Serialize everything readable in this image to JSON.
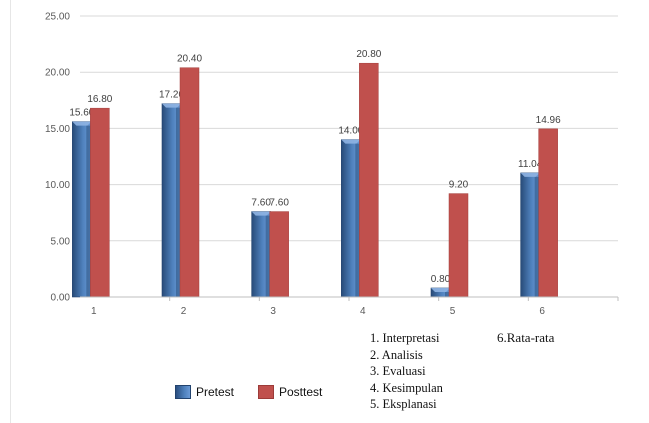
{
  "chart_data": {
    "type": "bar",
    "categories": [
      "1",
      "2",
      "3",
      "4",
      "5",
      "6"
    ],
    "series": [
      {
        "name": "Pretest",
        "values": [
          15.6,
          17.2,
          7.6,
          14.0,
          0.8,
          11.04
        ],
        "labels": [
          "15.60",
          "17.20",
          "7.60",
          "14.00",
          "0.80",
          "11.04"
        ],
        "color": "#4f81bd"
      },
      {
        "name": "Posttest",
        "values": [
          16.8,
          20.4,
          7.6,
          20.8,
          9.2,
          14.96
        ],
        "labels": [
          "16.80",
          "20.40",
          "7.60",
          "20.80",
          "9.20",
          "14.96"
        ],
        "color": "#c0504d"
      }
    ],
    "yticks": [
      "0.00",
      "5.00",
      "10.00",
      "15.00",
      "20.00",
      "25.00"
    ],
    "ylim": [
      0,
      25
    ],
    "grid": true,
    "legend_position": "bottom-left",
    "notes": [
      "1. Interpretasi",
      "2. Analisis",
      "3. Evaluasi",
      "4. Kesimpulan",
      "5. Eksplanasi"
    ],
    "note6": "6.Rata-rata"
  }
}
